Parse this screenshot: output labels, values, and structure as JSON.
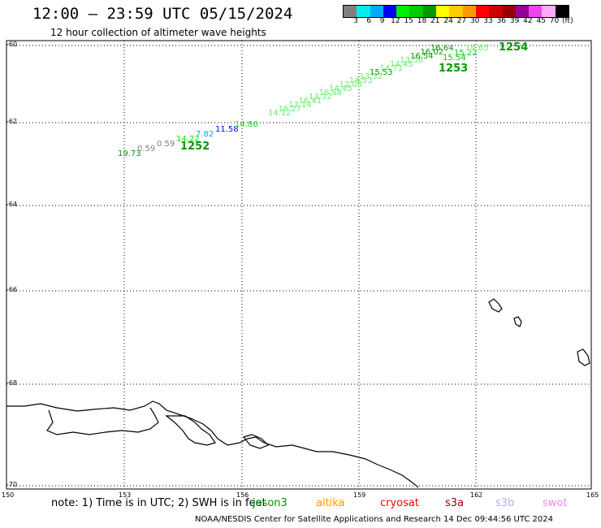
{
  "header": {
    "title": "12:00 – 23:59 UTC 05/15/2024",
    "subtitle": "12 hour collection of altimeter wave heights"
  },
  "legend": {
    "colors": [
      "#808080",
      "#00eeee",
      "#00aaff",
      "#0000ff",
      "#00ee00",
      "#00cc00",
      "#009900",
      "#ffff00",
      "#ffcc00",
      "#ff9900",
      "#ff0000",
      "#cc0000",
      "#990000",
      "#990099",
      "#ee44ee",
      "#ffaaff",
      "#000000"
    ],
    "ticks": [
      "3",
      "6",
      "9",
      "12",
      "15",
      "18",
      "21",
      "24",
      "27",
      "30",
      "33",
      "36",
      "39",
      "42",
      "45",
      "70",
      "(ft)"
    ]
  },
  "axes": {
    "lat_labels": [
      "-60",
      "-62",
      "-64",
      "-66",
      "-68",
      "-70"
    ],
    "lon_labels": [
      "150",
      "153",
      "156",
      "159",
      "162",
      "165"
    ]
  },
  "tracks": [
    {
      "id": "1252",
      "label_color": "#009900",
      "points": [
        {
          "text": "19.73",
          "color": "#009900"
        },
        {
          "text": "0.59",
          "color": "#808080"
        },
        {
          "text": "0.59",
          "color": "#808080"
        },
        {
          "text": "14.22",
          "color": "#00ee00"
        },
        {
          "text": "7.82",
          "color": "#00aaff"
        },
        {
          "text": "11.58",
          "color": "#0000ff"
        },
        {
          "text": "14.86",
          "color": "#00ee00"
        }
      ]
    },
    {
      "id": "1253",
      "label_color": "#009900",
      "points": [
        {
          "text": "14.12",
          "color": "#66ee66"
        },
        {
          "text": "16.27",
          "color": "#66ee66"
        },
        {
          "text": "13.14",
          "color": "#66ee66"
        },
        {
          "text": "16.41",
          "color": "#66ee66"
        },
        {
          "text": "13.32",
          "color": "#66ee66"
        },
        {
          "text": "16.88",
          "color": "#66ee66"
        },
        {
          "text": "14.45",
          "color": "#66ee66"
        },
        {
          "text": "12.08",
          "color": "#66ee66"
        },
        {
          "text": "14.53",
          "color": "#66ee66"
        },
        {
          "text": "13.32",
          "color": "#66ee66"
        },
        {
          "text": "15.53",
          "color": "#009900"
        },
        {
          "text": "14.71",
          "color": "#66ee66"
        },
        {
          "text": "14.45",
          "color": "#66ee66"
        },
        {
          "text": "13.56",
          "color": "#66ee66"
        },
        {
          "text": "16.54",
          "color": "#009900"
        },
        {
          "text": "16.02",
          "color": "#009900"
        },
        {
          "text": "16.64",
          "color": "#009900"
        }
      ]
    },
    {
      "id": "1254",
      "label_color": "#009900",
      "points": [
        {
          "text": "15.54",
          "color": "#00cc00"
        },
        {
          "text": "15.22",
          "color": "#00cc00"
        },
        {
          "text": "14.65",
          "color": "#66ee66"
        }
      ]
    }
  ],
  "note": "note: 1) Time is in UTC; 2) SWH is in feet",
  "satellites": [
    {
      "name": "jason3",
      "color": "#009900"
    },
    {
      "name": "altika",
      "color": "#ff9900"
    },
    {
      "name": "cryosat",
      "color": "#ff0000"
    },
    {
      "name": "s3a",
      "color": "#990000"
    },
    {
      "name": "s3b",
      "color": "#bbaaee"
    },
    {
      "name": "swot",
      "color": "#ee88ee"
    }
  ],
  "footer": "NOAA/NESDIS Center for Satellite Applications and Research    14 Dec 09:44:56 UTC 2024"
}
